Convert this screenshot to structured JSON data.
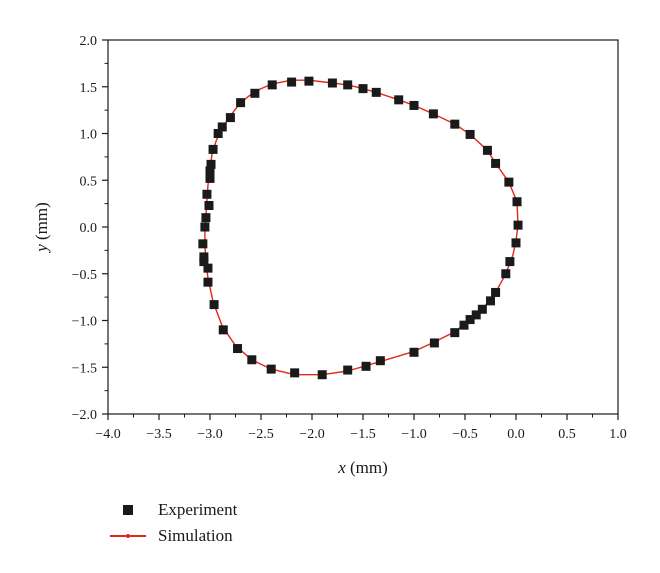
{
  "chart_data": {
    "type": "scatter",
    "xlabel": {
      "var": "x",
      "unit": " (mm)"
    },
    "ylabel": {
      "var": "y",
      "unit": " (mm)"
    },
    "xlim": [
      -4.0,
      1.0
    ],
    "ylim": [
      -2.0,
      2.0
    ],
    "x_ticks": [
      -4.0,
      -3.5,
      -3.0,
      -2.5,
      -2.0,
      -1.5,
      -1.0,
      -0.5,
      0.0,
      0.5,
      1.0
    ],
    "y_ticks": [
      -2.0,
      -1.5,
      -1.0,
      -0.5,
      0.0,
      0.5,
      1.0,
      1.5,
      2.0
    ],
    "x_tick_labels": [
      "−4.0",
      "−3.5",
      "−3.0",
      "−2.5",
      "−2.0",
      "−1.5",
      "−1.0",
      "−0.5",
      "0.0",
      "0.5",
      "1.0"
    ],
    "y_tick_labels": [
      "−2.0",
      "−1.5",
      "−1.0",
      "−0.5",
      "0.0",
      "0.5",
      "1.0",
      "1.5",
      "2.0"
    ],
    "grid": false,
    "legend_position": "below",
    "series": [
      {
        "name": "Experiment",
        "marker": "square",
        "color": "#1a1a1a",
        "points": [
          [
            0.02,
            0.02
          ],
          [
            0.01,
            0.27
          ],
          [
            -0.07,
            0.48
          ],
          [
            -0.2,
            0.68
          ],
          [
            -0.28,
            0.82
          ],
          [
            -0.45,
            0.99
          ],
          [
            -0.6,
            1.1
          ],
          [
            -0.81,
            1.21
          ],
          [
            -1.0,
            1.3
          ],
          [
            -1.15,
            1.36
          ],
          [
            -1.37,
            1.44
          ],
          [
            -1.5,
            1.48
          ],
          [
            -1.65,
            1.52
          ],
          [
            -1.8,
            1.54
          ],
          [
            -2.03,
            1.56
          ],
          [
            -2.2,
            1.55
          ],
          [
            -2.39,
            1.52
          ],
          [
            -2.56,
            1.43
          ],
          [
            -2.7,
            1.33
          ],
          [
            -2.8,
            1.17
          ],
          [
            -2.88,
            1.07
          ],
          [
            -2.92,
            1.0
          ],
          [
            -2.97,
            0.83
          ],
          [
            -2.99,
            0.67
          ],
          [
            -3.0,
            0.6
          ],
          [
            -3.0,
            0.52
          ],
          [
            -3.03,
            0.35
          ],
          [
            -3.01,
            0.23
          ],
          [
            -3.04,
            0.1
          ],
          [
            -3.05,
            0.0
          ],
          [
            -3.07,
            -0.18
          ],
          [
            -3.06,
            -0.32
          ],
          [
            -3.06,
            -0.37
          ],
          [
            -3.02,
            -0.44
          ],
          [
            -3.02,
            -0.59
          ],
          [
            -2.96,
            -0.83
          ],
          [
            -2.87,
            -1.1
          ],
          [
            -2.73,
            -1.3
          ],
          [
            -2.59,
            -1.42
          ],
          [
            -2.4,
            -1.52
          ],
          [
            -2.17,
            -1.56
          ],
          [
            -1.9,
            -1.58
          ],
          [
            -1.65,
            -1.53
          ],
          [
            -1.47,
            -1.49
          ],
          [
            -1.33,
            -1.43
          ],
          [
            -1.0,
            -1.34
          ],
          [
            -0.8,
            -1.24
          ],
          [
            -0.6,
            -1.13
          ],
          [
            -0.51,
            -1.05
          ],
          [
            -0.45,
            -0.99
          ],
          [
            -0.39,
            -0.94
          ],
          [
            -0.33,
            -0.88
          ],
          [
            -0.25,
            -0.79
          ],
          [
            -0.2,
            -0.7
          ],
          [
            -0.1,
            -0.5
          ],
          [
            -0.06,
            -0.37
          ],
          [
            0.0,
            -0.17
          ]
        ]
      },
      {
        "name": "Simulation",
        "marker": "line",
        "color": "#e2281b",
        "points": [
          [
            0.02,
            0.02
          ],
          [
            0.01,
            0.27
          ],
          [
            -0.07,
            0.48
          ],
          [
            -0.2,
            0.68
          ],
          [
            -0.28,
            0.82
          ],
          [
            -0.45,
            0.99
          ],
          [
            -0.6,
            1.1
          ],
          [
            -0.81,
            1.21
          ],
          [
            -1.0,
            1.3
          ],
          [
            -1.15,
            1.36
          ],
          [
            -1.37,
            1.44
          ],
          [
            -1.5,
            1.48
          ],
          [
            -1.65,
            1.52
          ],
          [
            -1.8,
            1.54
          ],
          [
            -2.03,
            1.57
          ],
          [
            -2.2,
            1.57
          ],
          [
            -2.39,
            1.53
          ],
          [
            -2.56,
            1.45
          ],
          [
            -2.7,
            1.33
          ],
          [
            -2.8,
            1.19
          ],
          [
            -2.88,
            1.06
          ],
          [
            -2.94,
            0.92
          ],
          [
            -2.98,
            0.78
          ],
          [
            -3.0,
            0.62
          ],
          [
            -3.02,
            0.45
          ],
          [
            -3.03,
            0.28
          ],
          [
            -3.04,
            0.1
          ],
          [
            -3.05,
            -0.05
          ],
          [
            -3.05,
            -0.2
          ],
          [
            -3.04,
            -0.37
          ],
          [
            -3.02,
            -0.55
          ],
          [
            -2.97,
            -0.8
          ],
          [
            -2.88,
            -1.06
          ],
          [
            -2.75,
            -1.27
          ],
          [
            -2.59,
            -1.42
          ],
          [
            -2.4,
            -1.52
          ],
          [
            -2.17,
            -1.58
          ],
          [
            -1.9,
            -1.58
          ],
          [
            -1.65,
            -1.54
          ],
          [
            -1.33,
            -1.44
          ],
          [
            -1.0,
            -1.33
          ],
          [
            -0.8,
            -1.23
          ],
          [
            -0.6,
            -1.12
          ],
          [
            -0.45,
            -0.99
          ],
          [
            -0.33,
            -0.88
          ],
          [
            -0.2,
            -0.7
          ],
          [
            -0.1,
            -0.5
          ],
          [
            -0.03,
            -0.3
          ],
          [
            0.0,
            -0.15
          ],
          [
            0.02,
            0.02
          ]
        ]
      }
    ]
  }
}
